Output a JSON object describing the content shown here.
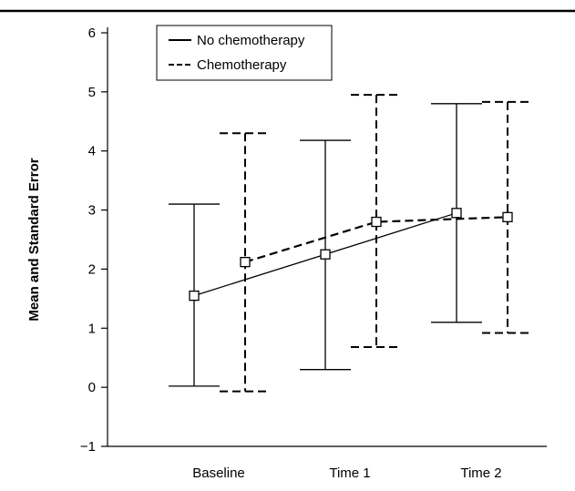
{
  "chart_data": {
    "type": "line",
    "title": "",
    "xlabel": "",
    "ylabel": "Mean and Standard Error",
    "categories": [
      "Baseline",
      "Time 1",
      "Time 2"
    ],
    "ylim": [
      -1,
      6
    ],
    "yticks": [
      "−1",
      "0",
      "1",
      "2",
      "3",
      "4",
      "5",
      "6"
    ],
    "grid": false,
    "legend": "top-left",
    "series": [
      {
        "name": "No chemotherapy",
        "line_style": "solid",
        "values": [
          1.55,
          2.25,
          2.95
        ],
        "lower": [
          0.02,
          0.3,
          1.1
        ],
        "upper": [
          3.1,
          4.18,
          4.8
        ]
      },
      {
        "name": "Chemotherapy",
        "line_style": "dashed",
        "values": [
          2.12,
          2.8,
          2.88
        ],
        "lower": [
          -0.07,
          0.68,
          0.92
        ],
        "upper": [
          4.3,
          4.95,
          4.83
        ]
      }
    ],
    "marker": "open-square",
    "colors": {
      "line": "#000000",
      "background": "#ffffff"
    }
  }
}
